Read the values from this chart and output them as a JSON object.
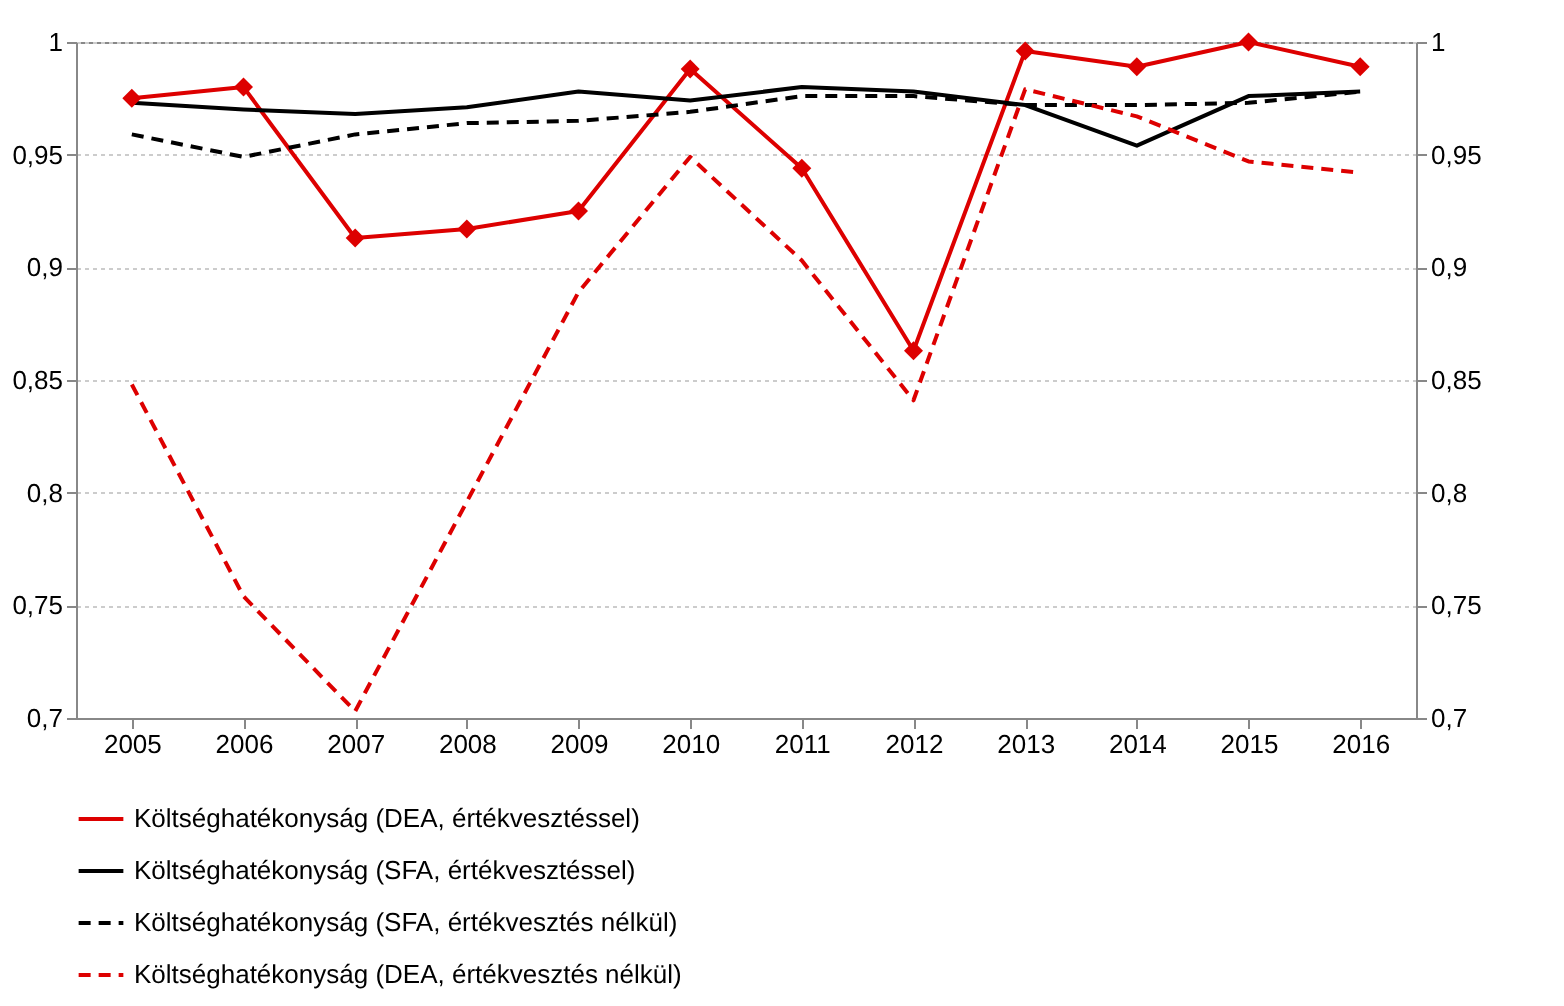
{
  "chart_data": {
    "type": "line",
    "categories": [
      "2005",
      "2006",
      "2007",
      "2008",
      "2009",
      "2010",
      "2011",
      "2012",
      "2013",
      "2014",
      "2015",
      "2016"
    ],
    "series": [
      {
        "name": "Költséghatékonyság (DEA, értékvesztéssel)",
        "color": "#dd0000",
        "marker": "diamond",
        "line_style": "solid",
        "values": [
          0.975,
          0.98,
          0.913,
          0.917,
          0.925,
          0.988,
          0.944,
          0.863,
          0.996,
          0.989,
          1.0,
          0.989
        ]
      },
      {
        "name": "Költséghatékonyság (SFA, értékvesztéssel)",
        "color": "#000000",
        "marker": "none",
        "line_style": "solid",
        "values": [
          0.973,
          0.97,
          0.968,
          0.971,
          0.978,
          0.974,
          0.98,
          0.978,
          0.972,
          0.954,
          0.976,
          0.978
        ]
      },
      {
        "name": "Költséghatékonyság (SFA, értékvesztés nélkül)",
        "color": "#000000",
        "marker": "none",
        "line_style": "dashed",
        "values": [
          0.959,
          0.949,
          0.959,
          0.964,
          0.965,
          0.969,
          0.976,
          0.976,
          0.972,
          0.972,
          0.973,
          0.978
        ]
      },
      {
        "name": "Költséghatékonyság (DEA, értékvesztés nélkül)",
        "color": "#dd0000",
        "marker": "none",
        "line_style": "dashed",
        "values": [
          0.848,
          0.754,
          0.703,
          0.796,
          0.889,
          0.949,
          0.903,
          0.841,
          0.979,
          0.967,
          0.947,
          0.942
        ]
      }
    ],
    "ylim": [
      0.7,
      1
    ],
    "yticks": [
      {
        "value": 0.7,
        "label": "0,7"
      },
      {
        "value": 0.75,
        "label": "0,75"
      },
      {
        "value": 0.8,
        "label": "0,8"
      },
      {
        "value": 0.85,
        "label": "0,85"
      },
      {
        "value": 0.9,
        "label": "0,9"
      },
      {
        "value": 0.95,
        "label": "0,95"
      },
      1
    ],
    "y2lim": [
      0.7,
      1
    ],
    "y2ticks": [
      {
        "value": 0.7,
        "label": "0,7"
      },
      {
        "value": 0.75,
        "label": "0,75"
      },
      {
        "value": 0.8,
        "label": "0,8"
      },
      {
        "value": 0.85,
        "label": "0,85"
      },
      {
        "value": 0.9,
        "label": "0,9"
      },
      {
        "value": 0.95,
        "label": "0,95"
      },
      1
    ],
    "grid": "y",
    "legend": "bottom left"
  }
}
